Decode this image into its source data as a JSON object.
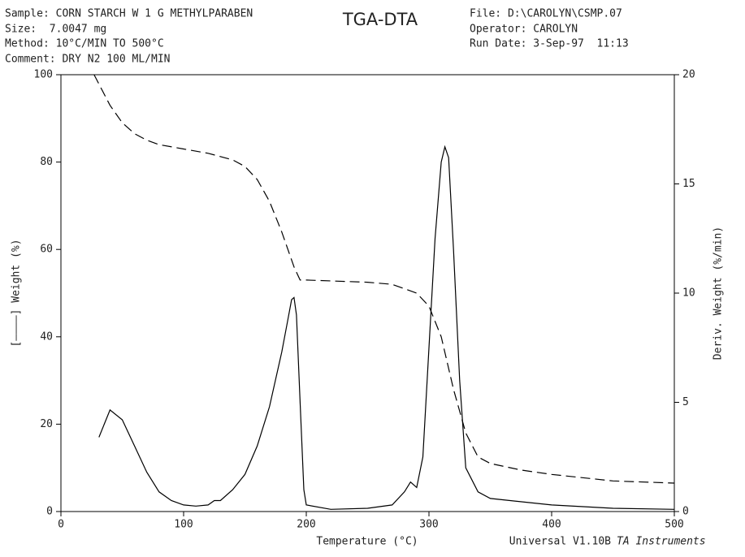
{
  "chart_data": {
    "type": "line",
    "header": {
      "sample": "Sample: CORN STARCH W 1 G METHYLPARABEN",
      "size": "Size:  7.0047 mg",
      "method": "Method: 10°C/MIN TO 500°C",
      "comment": "Comment: DRY N2 100 ML/MIN",
      "file": "File: D:\\CAROLYN\\CSMP.07",
      "operator": "Operator: CAROLYN",
      "run_date": "Run Date: 3-Sep-97  11:13"
    },
    "title": "TGA-DTA",
    "x_label": "Temperature (°C)",
    "y_label": "[————] Weight (%)",
    "y2_label": "Deriv. Weight (%/min)",
    "footer": "Universal V1.10B",
    "footer_brand": "TA Instruments",
    "xlim": [
      0,
      500
    ],
    "xticks": [
      0,
      100,
      200,
      300,
      400,
      500
    ],
    "ylim": [
      0,
      100
    ],
    "yticks": [
      0,
      20,
      40,
      60,
      80,
      100
    ],
    "y2lim": [
      0,
      20
    ],
    "y2ticks": [
      0,
      5,
      10,
      15,
      20
    ],
    "series": [
      {
        "name": "Weight",
        "color": "#000000",
        "dash": true,
        "x": [
          27,
          40,
          50,
          60,
          70,
          80,
          100,
          120,
          140,
          150,
          160,
          170,
          180,
          190,
          195,
          200,
          250,
          270,
          290,
          300,
          310,
          320,
          330,
          340,
          350,
          375,
          400,
          450,
          500
        ],
        "values": [
          100,
          93,
          89,
          86.5,
          85,
          84,
          83,
          82,
          80.5,
          79,
          76,
          71,
          64,
          56,
          53,
          53,
          52.5,
          52,
          50,
          47,
          40,
          28,
          18,
          12.5,
          11,
          9.5,
          8.5,
          7,
          6.5
        ]
      },
      {
        "name": "Deriv. Weight",
        "color": "#000000",
        "dash": false,
        "axis": "y2",
        "x": [
          31,
          40,
          50,
          60,
          70,
          80,
          90,
          100,
          110,
          120,
          125,
          130,
          140,
          150,
          160,
          170,
          180,
          185,
          188,
          190,
          192,
          195,
          198,
          200,
          220,
          250,
          270,
          280,
          285,
          290,
          295,
          300,
          305,
          310,
          313,
          316,
          320,
          325,
          330,
          340,
          350,
          400,
          450,
          500
        ],
        "values": [
          3.4,
          4.65,
          4.2,
          3.0,
          1.8,
          0.9,
          0.5,
          0.3,
          0.25,
          0.3,
          0.5,
          0.5,
          1.0,
          1.7,
          3.0,
          4.8,
          7.3,
          8.8,
          9.7,
          9.8,
          9.0,
          5.0,
          1.0,
          0.3,
          0.1,
          0.15,
          0.3,
          0.9,
          1.35,
          1.1,
          2.5,
          7.5,
          12.5,
          16.0,
          16.7,
          16.2,
          12.0,
          6.0,
          2.0,
          0.9,
          0.6,
          0.3,
          0.15,
          0.1
        ]
      }
    ]
  }
}
